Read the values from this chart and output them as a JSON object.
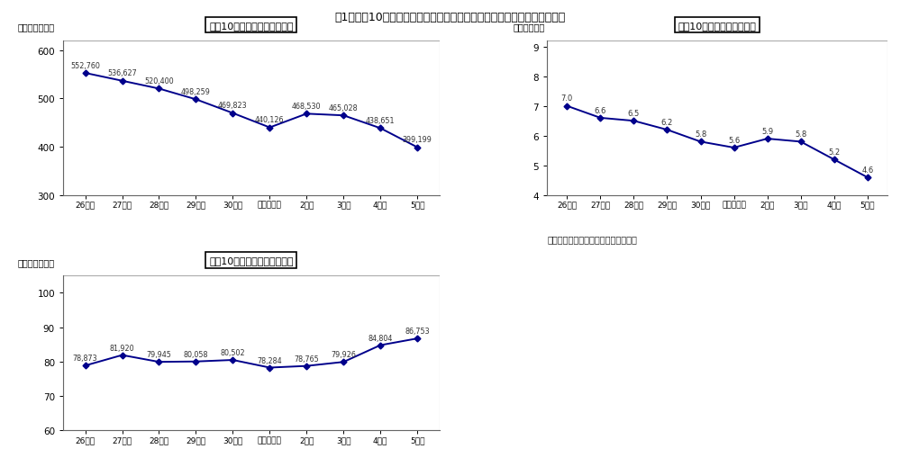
{
  "title": "囱1　過去10年間の競争試験における受験者数、合格者数、競争率の推移",
  "x_labels": [
    "26年度",
    "27年度",
    "28年度",
    "29年度",
    "30年度",
    "令和元年度",
    "2年度",
    "3年度",
    "4年度",
    "5年度"
  ],
  "exam_values": [
    552.76,
    536.627,
    520.4,
    498.259,
    469.823,
    440.126,
    468.53,
    465.028,
    438.651,
    399.199
  ],
  "exam_labels": [
    "552,760",
    "536,627",
    "520,400",
    "498,259",
    "469,823",
    "440,126",
    "468,530",
    "465,028",
    "438,651",
    "399,199"
  ],
  "pass_values": [
    78.873,
    81.92,
    79.945,
    80.058,
    80.502,
    78.284,
    78.765,
    79.926,
    84.804,
    86.753
  ],
  "pass_labels": [
    "78,873",
    "81,920",
    "79,945",
    "80,058",
    "80,502",
    "78,284",
    "78,765",
    "79,926",
    "84,804",
    "86,753"
  ],
  "rate_values": [
    7.0,
    6.6,
    6.5,
    6.2,
    5.8,
    5.6,
    5.9,
    5.8,
    5.2,
    4.6
  ],
  "rate_labels": [
    "7.0",
    "6.6",
    "6.5",
    "6.2",
    "5.8",
    "5.6",
    "5.9",
    "5.8",
    "5.2",
    "4.6"
  ],
  "exam_title": "過去10年間の受験者数の推移",
  "pass_title": "過去10年間の合格者数の推移",
  "rate_title": "過去10年間の競争率の推移",
  "exam_ylabel": "（単位：千人）",
  "pass_ylabel": "（単位：千人）",
  "rate_ylabel": "（単位：倍）",
  "note": "（注）　競争率は受験者数／合格者数",
  "line_color": "#00008B",
  "bg_color": "#ffffff",
  "exam_ylim": [
    300,
    620
  ],
  "pass_ylim": [
    60,
    105
  ],
  "rate_ylim": [
    4,
    9.2
  ],
  "exam_yticks": [
    300,
    400,
    500,
    600
  ],
  "pass_yticks": [
    60,
    70,
    80,
    90,
    100
  ],
  "rate_yticks": [
    4,
    5,
    6,
    7,
    8,
    9
  ],
  "exam_label_offsets": [
    1,
    1,
    1,
    1,
    1,
    1,
    1,
    1,
    1,
    1
  ],
  "pass_label_offsets": [
    1,
    1,
    1,
    1,
    1,
    1,
    1,
    1,
    1,
    1
  ],
  "rate_label_offsets": [
    1,
    1,
    1,
    1,
    1,
    1,
    1,
    1,
    1,
    1
  ]
}
